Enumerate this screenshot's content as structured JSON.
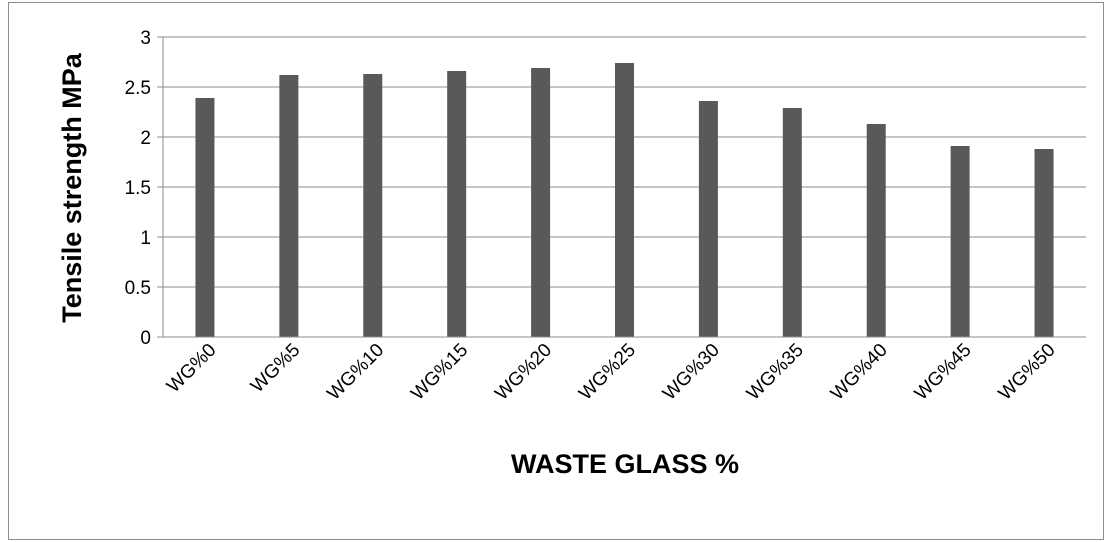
{
  "chart_data": {
    "type": "bar",
    "title": "",
    "xlabel": "WASTE GLASS %",
    "ylabel": "Tensile strength MPa",
    "categories": [
      "WG%0",
      "WG%5",
      "WG%10",
      "WG%15",
      "WG%20",
      "WG%25",
      "WG%30",
      "WG%35",
      "WG%40",
      "WG%45",
      "WG%50"
    ],
    "values": [
      2.39,
      2.62,
      2.63,
      2.66,
      2.69,
      2.74,
      2.36,
      2.29,
      2.13,
      1.91,
      1.88
    ],
    "ylim": [
      0,
      3
    ],
    "yticks": [
      "0",
      "0.5",
      "1",
      "1.5",
      "2",
      "2.5",
      "3"
    ],
    "grid": true,
    "legend": "none",
    "colors": {
      "bar": "#595959",
      "grid": "#8c8c8c",
      "axis": "#8c8c8c"
    }
  }
}
